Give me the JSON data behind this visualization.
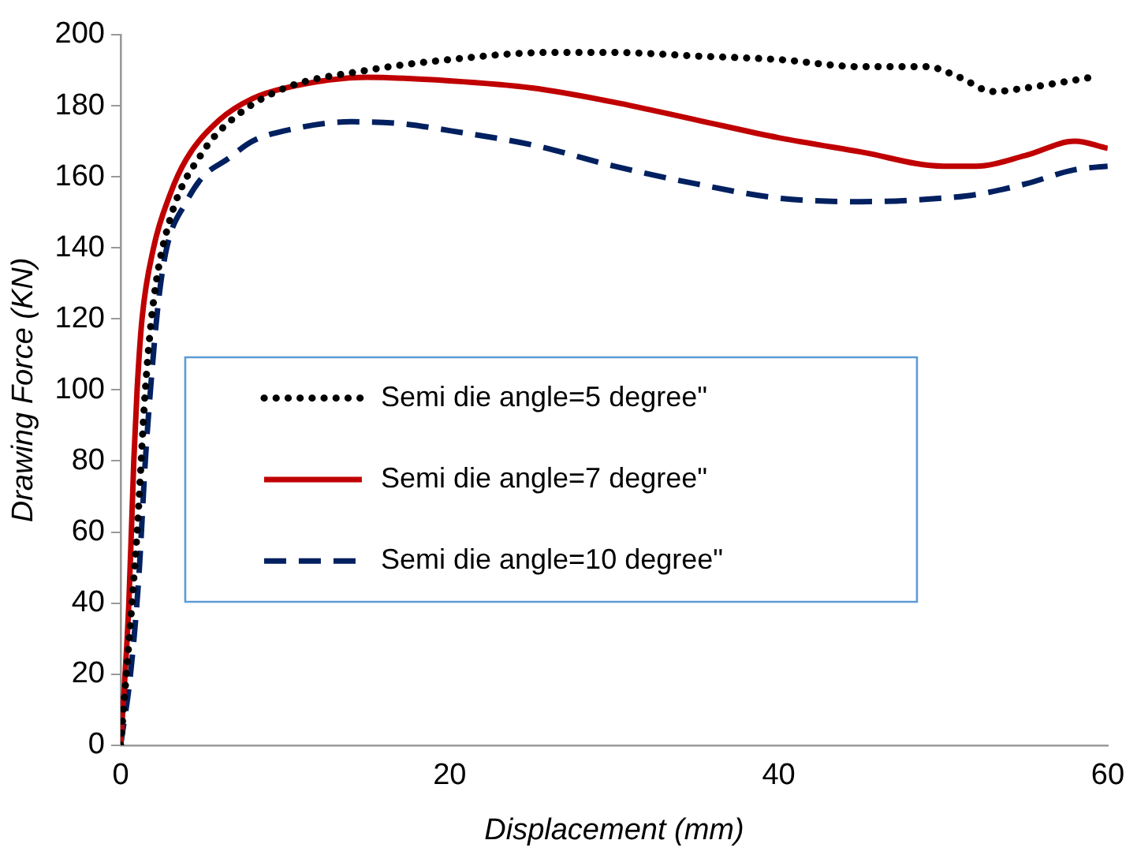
{
  "chart_data": {
    "type": "line",
    "xlabel": "Displacement (mm)",
    "ylabel": "Drawing Force (KN)",
    "xlim": [
      0,
      60
    ],
    "xticks": [
      0,
      20,
      40,
      60
    ],
    "ylim": [
      0,
      200
    ],
    "yticks": [
      0,
      20,
      40,
      60,
      80,
      100,
      120,
      140,
      160,
      180,
      200
    ],
    "grid": false,
    "legend": "center",
    "marker": "none",
    "series": [
      {
        "name": "Semi die angle=5 degree\"",
        "color": "#000000",
        "line_style": "dotted",
        "x": [
          0,
          1,
          1.5,
          2,
          3,
          5,
          7,
          10,
          15,
          20,
          26,
          30,
          35,
          40,
          45,
          49,
          51,
          53,
          55,
          59
        ],
        "values": [
          0,
          60,
          100,
          125,
          148,
          167,
          177,
          185,
          190,
          193,
          195,
          195,
          194,
          193,
          191,
          191,
          188,
          184,
          185,
          188
        ]
      },
      {
        "name": "Semi die angle=7 degree\"",
        "color": "#c00000",
        "line_style": "solid",
        "x": [
          0,
          0.5,
          0.8,
          1,
          1.3,
          2,
          3,
          4,
          6,
          8,
          10,
          15,
          20,
          25,
          30,
          35,
          40,
          45,
          50,
          52,
          55,
          58,
          60
        ],
        "values": [
          0,
          40,
          80,
          100,
          120,
          140,
          155,
          165,
          176,
          182,
          185,
          188,
          187,
          185,
          181,
          176,
          171,
          167,
          163,
          163,
          166,
          170,
          168
        ]
      },
      {
        "name": "Semi die angle=10 degree\"",
        "color": "#002060",
        "line_style": "dashed",
        "x": [
          0,
          0.6,
          1.1,
          1.5,
          1.9,
          2.3,
          2.8,
          4,
          5,
          6.5,
          8,
          10,
          14,
          17,
          20,
          25,
          30,
          35,
          40,
          45,
          50,
          52,
          55,
          58,
          60
        ],
        "values": [
          0,
          20,
          47,
          80,
          105,
          125,
          140,
          153,
          160,
          165,
          170,
          173,
          175.5,
          175,
          173,
          169,
          163,
          158,
          154,
          153,
          154,
          155,
          158,
          162,
          163
        ]
      }
    ]
  }
}
